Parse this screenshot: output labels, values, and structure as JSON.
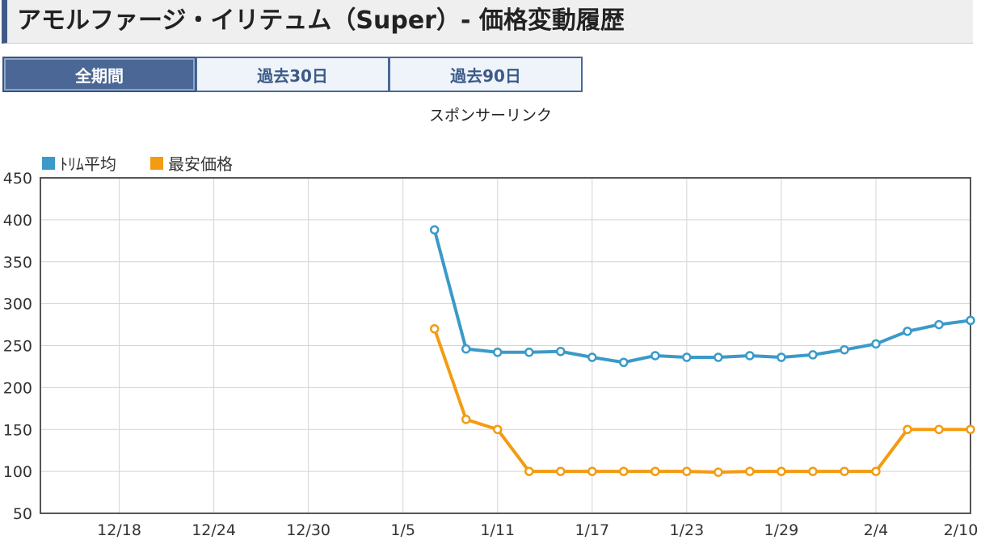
{
  "page": {
    "title": "アモルファージ・イリテュム（Super）- 価格変動履歴",
    "tabs": [
      {
        "label": "全期間",
        "active": true
      },
      {
        "label": "過去30日",
        "active": false
      },
      {
        "label": "過去90日",
        "active": false
      }
    ],
    "sponsor_text": "スポンサーリンク",
    "colors": {
      "accent": "#4a6796",
      "series_avg": "#3a9ac9",
      "series_min": "#f39c12"
    }
  },
  "chart_data": {
    "type": "line",
    "title": "",
    "xlabel": "",
    "ylabel": "",
    "legend_position": "top-left",
    "grid": true,
    "ylim": [
      50,
      450
    ],
    "y_ticks": [
      50,
      100,
      150,
      200,
      250,
      300,
      350,
      400,
      450
    ],
    "y_tick_labels": [
      "50",
      "100",
      "150",
      "200",
      "250",
      "300",
      "350",
      "400",
      "450"
    ],
    "xlim": [
      "12/13",
      "2/10"
    ],
    "x_ticks": [
      "12/18",
      "12/24",
      "12/30",
      "1/5",
      "1/11",
      "1/17",
      "1/23",
      "1/29",
      "2/4",
      "2/10"
    ],
    "x_tick_labels": [
      "12/18",
      "12/24",
      "12/30",
      "1/5",
      "1/11",
      "1/17",
      "1/23",
      "1/29",
      "2/4",
      "2/10"
    ],
    "x": [
      "1/7",
      "1/9",
      "1/11",
      "1/13",
      "1/15",
      "1/17",
      "1/19",
      "1/21",
      "1/23",
      "1/25",
      "1/27",
      "1/29",
      "1/31",
      "2/2",
      "2/4",
      "2/6",
      "2/8",
      "2/10"
    ],
    "series": [
      {
        "name": "ﾄﾘﾑ平均",
        "color": "#3a9ac9",
        "values": [
          388,
          246,
          242,
          242,
          243,
          236,
          230,
          238,
          236,
          236,
          238,
          236,
          239,
          245,
          252,
          267,
          275,
          280
        ]
      },
      {
        "name": "最安価格",
        "color": "#f39c12",
        "values": [
          270,
          162,
          150,
          100,
          100,
          100,
          100,
          100,
          100,
          99,
          100,
          100,
          100,
          100,
          100,
          150,
          150,
          150
        ]
      }
    ]
  }
}
